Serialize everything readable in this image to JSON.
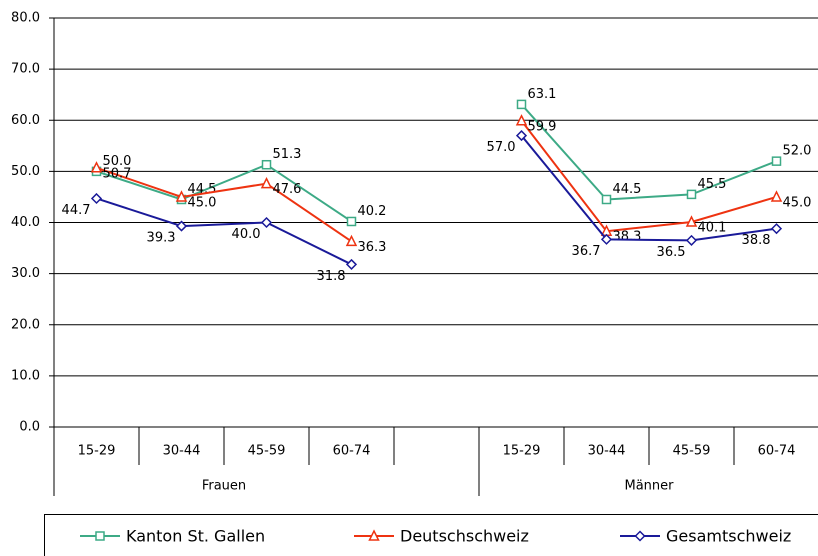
{
  "chart_data": {
    "type": "line",
    "categories": [
      "15-29",
      "30-44",
      "45-59",
      "60-74",
      null,
      "15-29",
      "30-44",
      "45-59",
      "60-74"
    ],
    "groups": [
      "Frauen",
      "Männer"
    ],
    "series": [
      {
        "name": "Kanton St. Gallen",
        "color": "#3daa86",
        "marker": "square",
        "values": [
          50.0,
          44.5,
          51.3,
          40.2,
          null,
          63.1,
          44.5,
          45.5,
          52.0
        ],
        "value_labels": [
          "50.0",
          "44.5",
          "51.3",
          "40.2",
          null,
          "63.1",
          "44.5",
          "45.5",
          "52.0"
        ]
      },
      {
        "name": "Deutschschweiz",
        "color": "#ee3311",
        "marker": "triangle",
        "values": [
          50.7,
          45.0,
          47.6,
          36.3,
          null,
          59.9,
          38.3,
          40.1,
          45.0
        ],
        "value_labels": [
          "50.7",
          "45.0",
          "47.6",
          "36.3",
          null,
          "59.9",
          "38.3",
          "40.1",
          "45.0"
        ]
      },
      {
        "name": "Gesamtschweiz",
        "color": "#1a1a99",
        "marker": "diamond",
        "values": [
          44.7,
          39.3,
          40.0,
          31.8,
          null,
          57.0,
          36.7,
          36.5,
          38.8
        ],
        "value_labels": [
          "44.7",
          "39.3",
          "40.0",
          "31.8",
          null,
          "57.0",
          "36.7",
          "36.5",
          "38.8"
        ]
      }
    ],
    "ylim": [
      0,
      80
    ],
    "yticks": [
      {
        "value": 0,
        "label": "0.0"
      },
      {
        "value": 10,
        "label": "10.0"
      },
      {
        "value": 20,
        "label": "20.0"
      },
      {
        "value": 30,
        "label": "30.0"
      },
      {
        "value": 40,
        "label": "40.0"
      },
      {
        "value": 50,
        "label": "50.0"
      },
      {
        "value": 60,
        "label": "60.0"
      },
      {
        "value": 70,
        "label": "70.0"
      },
      {
        "value": 80,
        "label": "80.0"
      }
    ],
    "grid": true,
    "legend": "bottom"
  }
}
